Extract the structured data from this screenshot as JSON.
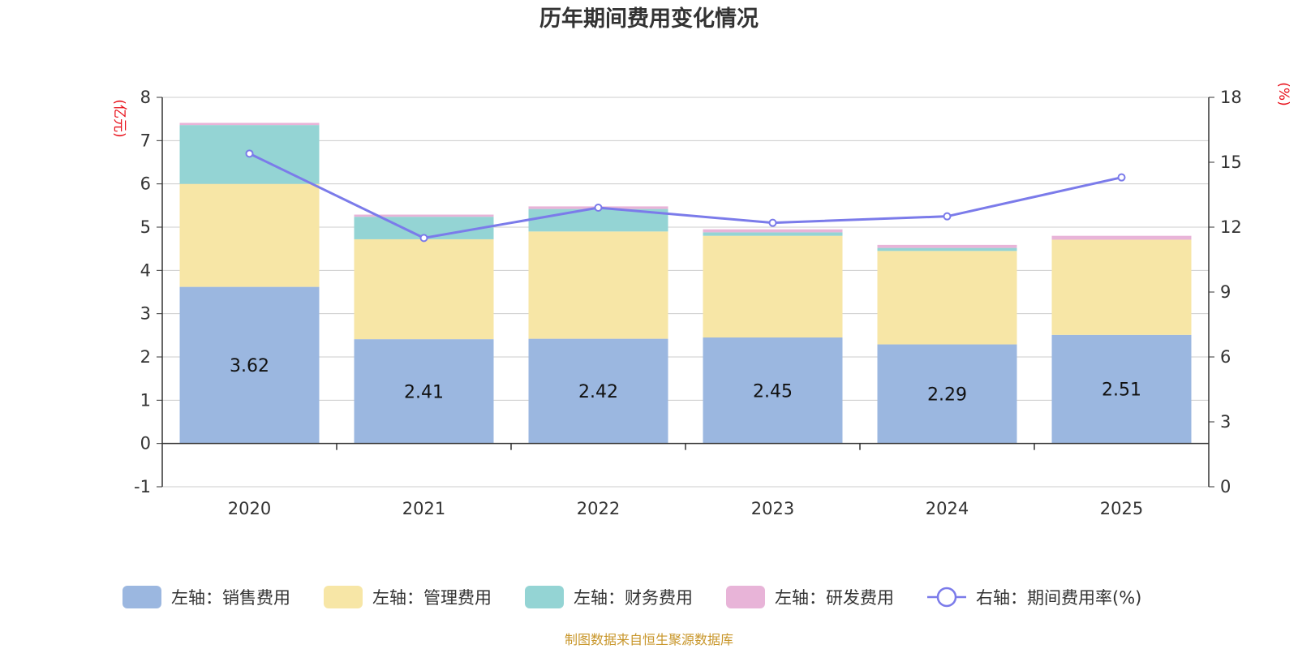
{
  "chart_data": {
    "type": "bar",
    "stacked": true,
    "title": "历年期间费用变化情况",
    "categories": [
      "2020",
      "2021",
      "2022",
      "2023",
      "2024",
      "2025"
    ],
    "left_axis": {
      "unit": "(亿元)",
      "range": [
        -1,
        8
      ],
      "ticks": [
        "8",
        "7",
        "6",
        "5",
        "4",
        "3",
        "2",
        "1",
        "0",
        "-1"
      ]
    },
    "right_axis": {
      "unit": "(%)",
      "range": [
        0,
        18
      ],
      "ticks": [
        "18",
        "15",
        "12",
        "9",
        "6",
        "3",
        "0"
      ]
    },
    "series": [
      {
        "name": "左轴：销售费用",
        "axis": "left",
        "color": "#9bb7e0",
        "values": [
          3.62,
          2.41,
          2.42,
          2.45,
          2.29,
          2.51
        ],
        "labels": [
          "3.62",
          "2.41",
          "2.42",
          "2.45",
          "2.29",
          "2.51"
        ]
      },
      {
        "name": "左轴：管理费用",
        "axis": "left",
        "color": "#f7e6a6",
        "values": [
          2.38,
          2.31,
          2.48,
          2.35,
          2.16,
          2.2
        ]
      },
      {
        "name": "左轴：财务费用",
        "axis": "left",
        "color": "#94d4d4",
        "values": [
          1.36,
          0.52,
          0.52,
          0.08,
          0.07,
          0.0
        ]
      },
      {
        "name": "左轴：研发费用",
        "axis": "left",
        "color": "#e8b4d8",
        "values": [
          0.05,
          0.05,
          0.06,
          0.07,
          0.07,
          0.09
        ]
      }
    ],
    "line": {
      "name": "右轴：期间费用率(%)",
      "axis": "right",
      "color": "#7b7bea",
      "values": [
        15.4,
        11.5,
        12.9,
        12.2,
        12.5,
        14.3
      ]
    },
    "source": "制图数据来自恒生聚源数据库"
  }
}
